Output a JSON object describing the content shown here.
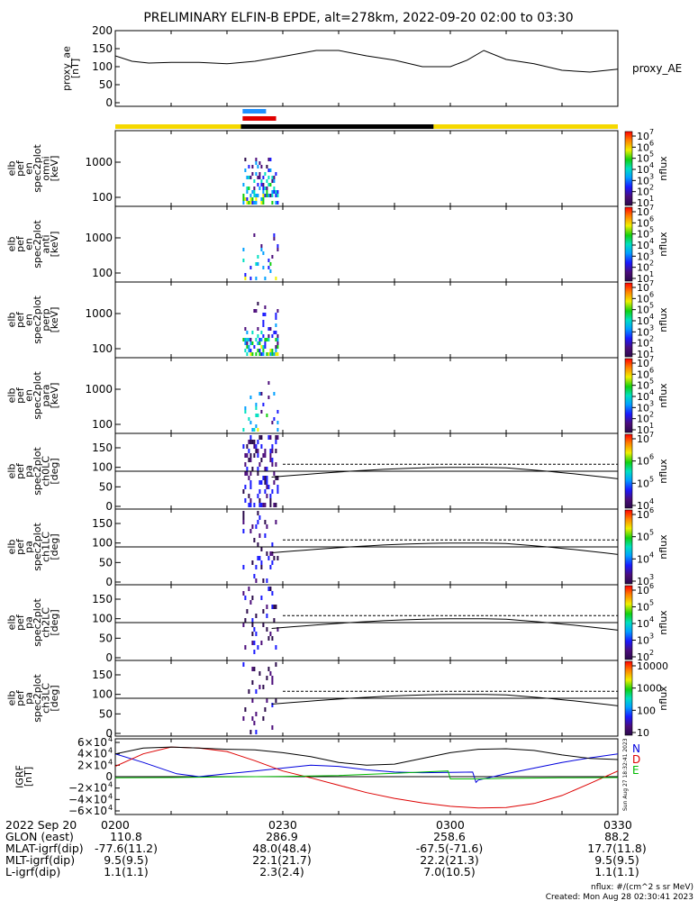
{
  "title": "PRELIMINARY ELFIN-B EPDE, alt=278km, 2022-09-20 02:00 to 03:30",
  "chart_data": [
    {
      "type": "line",
      "panel": "proxy_ae",
      "ylabel": [
        "proxy_ae",
        "[nT]"
      ],
      "yticks": [
        "200",
        "150",
        "100",
        "50",
        "0"
      ],
      "ylim": [
        0,
        200
      ],
      "legend": "proxy_AE",
      "x_minutes": [
        0,
        3,
        6,
        10,
        15,
        20,
        25,
        30,
        36,
        40,
        45,
        50,
        55,
        60,
        63,
        66,
        70,
        75,
        80,
        85,
        90
      ],
      "values": [
        130,
        115,
        110,
        112,
        112,
        108,
        115,
        128,
        145,
        145,
        130,
        118,
        100,
        100,
        118,
        145,
        120,
        108,
        90,
        85,
        93
      ]
    },
    {
      "type": "bar",
      "panel": "status-bars",
      "bars": [
        {
          "name": "blue",
          "start_min": 22.8,
          "end_min": 27.0,
          "color": "#1e90ff"
        },
        {
          "name": "red",
          "start_min": 22.8,
          "end_min": 28.8,
          "color": "#e00000"
        },
        {
          "name": "yellow",
          "start_min": 0,
          "end_min": 22.5,
          "color": "#f5d800"
        },
        {
          "name": "black",
          "start_min": 22.5,
          "end_min": 57.0,
          "color": "#000000"
        },
        {
          "name": "yellow-2",
          "start_min": 57.0,
          "end_min": 90,
          "color": "#f5d800"
        }
      ]
    },
    {
      "type": "heatmap",
      "panel": "spec-omni",
      "ylabel": [
        "elb",
        "pef",
        "en",
        "spec2plot",
        "omni",
        "[keV]"
      ],
      "yticks": [
        "1000",
        "100"
      ],
      "scale": "log",
      "cbar_label": "nflux",
      "cbar_ticks": [
        "10",
        "10",
        "10",
        "10",
        "10",
        "10",
        "10"
      ],
      "cbar_sup": [
        "7",
        "6",
        "5",
        "4",
        "3",
        "2",
        "1"
      ]
    },
    {
      "type": "heatmap",
      "panel": "spec-anti",
      "ylabel": [
        "elb",
        "pef",
        "en",
        "spec2plot",
        "anti",
        "[keV]"
      ],
      "yticks": [
        "1000",
        "100"
      ],
      "scale": "log",
      "cbar_label": "nflux",
      "cbar_ticks": [
        "10",
        "10",
        "10",
        "10",
        "10",
        "10",
        "10"
      ],
      "cbar_sup": [
        "7",
        "6",
        "5",
        "4",
        "3",
        "2",
        "1"
      ]
    },
    {
      "type": "heatmap",
      "panel": "spec-perp",
      "ylabel": [
        "elb",
        "pef",
        "en",
        "spec2plot",
        "perp",
        "[keV]"
      ],
      "yticks": [
        "1000",
        "100"
      ],
      "scale": "log",
      "cbar_label": "nflux",
      "cbar_ticks": [
        "10",
        "10",
        "10",
        "10",
        "10",
        "10",
        "10"
      ],
      "cbar_sup": [
        "7",
        "6",
        "5",
        "4",
        "3",
        "2",
        "1"
      ]
    },
    {
      "type": "heatmap",
      "panel": "spec-para",
      "ylabel": [
        "elb",
        "pef",
        "en",
        "spec2plot",
        "para",
        "[keV]"
      ],
      "yticks": [
        "1000",
        "100"
      ],
      "scale": "log",
      "cbar_label": "nflux",
      "cbar_ticks": [
        "10",
        "10",
        "10",
        "10",
        "10",
        "10",
        "10"
      ],
      "cbar_sup": [
        "7",
        "6",
        "5",
        "4",
        "3",
        "2",
        "1"
      ]
    },
    {
      "type": "heatmap",
      "panel": "pa-ch0",
      "ylabel": [
        "elb",
        "pef",
        "pa",
        "spec2plot",
        "ch0LC",
        "[deg]"
      ],
      "yticks": [
        "150",
        "100",
        "50",
        "0"
      ],
      "ylim": [
        0,
        180
      ],
      "cbar_label": "nflux",
      "cbar_ticks": [
        "10",
        "10",
        "10",
        "10"
      ],
      "cbar_sup": [
        "7",
        "6",
        "5",
        "4"
      ]
    },
    {
      "type": "heatmap",
      "panel": "pa-ch1",
      "ylabel": [
        "elb",
        "pef",
        "pa",
        "spec2plot",
        "ch1LC",
        "[deg]"
      ],
      "yticks": [
        "150",
        "100",
        "50",
        "0"
      ],
      "ylim": [
        0,
        180
      ],
      "cbar_label": "nflux",
      "cbar_ticks": [
        "10",
        "10",
        "10",
        "10"
      ],
      "cbar_sup": [
        "6",
        "5",
        "4",
        "3"
      ]
    },
    {
      "type": "heatmap",
      "panel": "pa-ch2",
      "ylabel": [
        "elb",
        "pef",
        "pa",
        "spec2plot",
        "ch2LC",
        "[deg]"
      ],
      "yticks": [
        "150",
        "100",
        "50",
        "0"
      ],
      "ylim": [
        0,
        180
      ],
      "cbar_label": "nflux",
      "cbar_ticks": [
        "10",
        "10",
        "10",
        "10",
        "10"
      ],
      "cbar_sup": [
        "6",
        "5",
        "4",
        "3",
        "2"
      ]
    },
    {
      "type": "heatmap",
      "panel": "pa-ch3",
      "ylabel": [
        "elb",
        "pef",
        "pa",
        "spec2plot",
        "ch3LC",
        "[deg]"
      ],
      "yticks": [
        "150",
        "100",
        "50",
        "0"
      ],
      "ylim": [
        0,
        180
      ],
      "cbar_label": "nflux",
      "cbar_ticks": [
        "10000",
        "1000",
        "100",
        "10"
      ],
      "cbar_sup": []
    },
    {
      "type": "line",
      "panel": "igrf",
      "ylabel": [
        "IGRF",
        "[nT]"
      ],
      "yticks": [
        "6×10",
        "4×10",
        "2×10",
        "0",
        "−2×10",
        "−4×10",
        "−6×10"
      ],
      "ytick_exp": "4",
      "ylim": [
        -60000,
        60000
      ],
      "legend": [
        "N",
        "D",
        "E"
      ],
      "series": [
        {
          "name": "N",
          "color": "#0000dd",
          "x_minutes": [
            0,
            5,
            11,
            15,
            20,
            25,
            30,
            35,
            40,
            45,
            50,
            55,
            60,
            64,
            64.6,
            65,
            70,
            75,
            80,
            85,
            90
          ],
          "values": [
            40000,
            25000,
            5000,
            0,
            5000,
            10000,
            15000,
            20000,
            18000,
            12000,
            8000,
            7000,
            7500,
            8000,
            -10000,
            -6000,
            5000,
            15000,
            25000,
            33000,
            40000
          ]
        },
        {
          "name": "D",
          "color": "#dd0000",
          "x_minutes": [
            0,
            5,
            10,
            15,
            20,
            25,
            30,
            35,
            40,
            45,
            50,
            55,
            60,
            65,
            70,
            75,
            80,
            85,
            90
          ],
          "values": [
            18000,
            40000,
            52000,
            50000,
            44000,
            28000,
            10000,
            -2000,
            -15000,
            -28000,
            -38000,
            -46000,
            -52000,
            -55000,
            -54000,
            -47000,
            -33000,
            -12000,
            10000
          ]
        },
        {
          "name": "E",
          "color": "#00bb00",
          "x_minutes": [
            0,
            10,
            20,
            30,
            40,
            50,
            55,
            59.6,
            60,
            63,
            64,
            70,
            80,
            90
          ],
          "values": [
            -2000,
            -1500,
            -500,
            500,
            2000,
            6000,
            8000,
            10000,
            -4000,
            -4000,
            -4000,
            -3000,
            -2000,
            -1500
          ]
        },
        {
          "name": "total",
          "color": "#000000",
          "x_minutes": [
            0,
            5,
            10,
            15,
            20,
            25,
            30,
            35,
            40,
            45,
            50,
            55,
            60,
            65,
            70,
            75,
            80,
            85,
            90
          ],
          "values": [
            40000,
            50000,
            52000,
            50000,
            48000,
            47000,
            42000,
            35000,
            25000,
            20000,
            22000,
            32000,
            42000,
            48000,
            49000,
            46000,
            38000,
            32000,
            30000
          ]
        }
      ]
    }
  ],
  "footer": {
    "date": "2022 Sep 20",
    "times": [
      "0200",
      "0230",
      "0300",
      "0330"
    ],
    "rows": [
      {
        "label": "GLON (east)",
        "values": [
          "110.8",
          "286.9",
          "258.6",
          "88.2"
        ]
      },
      {
        "label": "MLAT-igrf(dip)",
        "values": [
          "-77.6(11.2)",
          "48.0(48.4)",
          "-67.5(-71.6)",
          "17.7(11.8)"
        ]
      },
      {
        "label": "MLT-igrf(dip)",
        "values": [
          "9.5(9.5)",
          "22.1(21.7)",
          "22.2(21.3)",
          "9.5(9.5)"
        ]
      },
      {
        "label": "L-igrf(dip)",
        "values": [
          "1.1(1.1)",
          "2.3(2.4)",
          "7.0(10.5)",
          "1.1(1.1)"
        ]
      }
    ],
    "units_note": "nflux: #/(cm^2 s sr MeV)",
    "created": "Created: Mon Aug 28 02:30:41 2023",
    "vertical_stamp": "Sun Aug 27 18:32:41 2023"
  }
}
